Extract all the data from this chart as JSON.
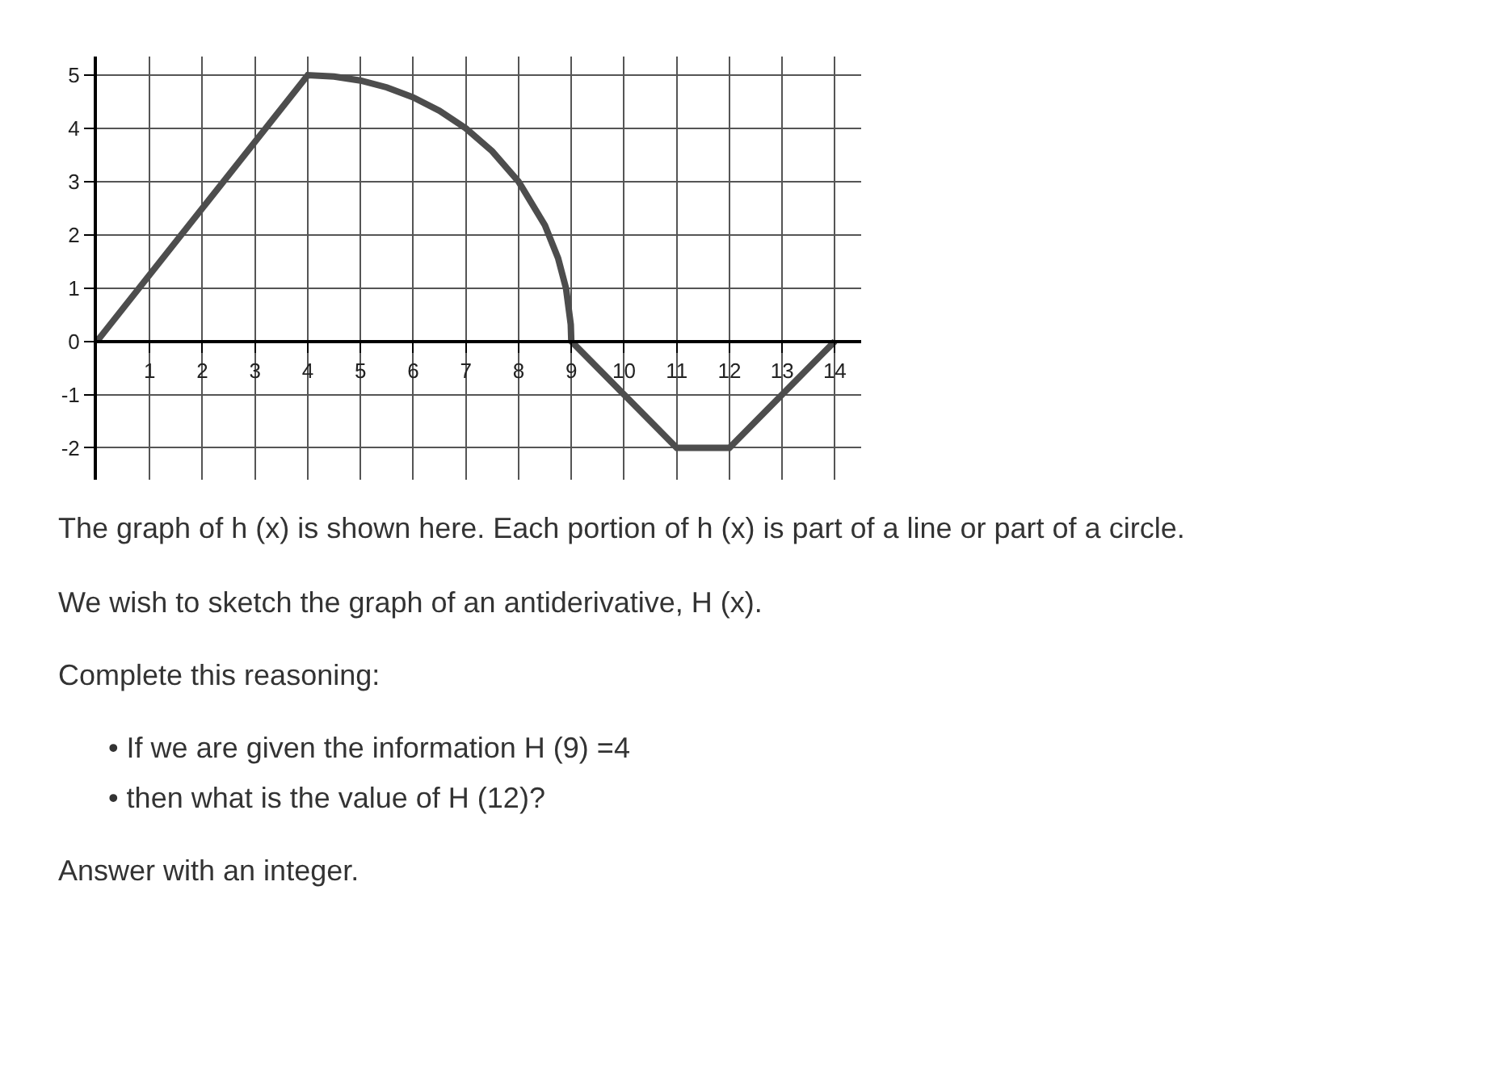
{
  "chart_data": {
    "type": "line",
    "x": [
      0,
      4,
      4.5,
      5,
      5.5,
      6,
      6.5,
      7,
      7.5,
      8,
      8.5,
      8.75,
      8.9,
      8.99,
      9,
      11,
      12,
      14
    ],
    "values": [
      0,
      5,
      4.975,
      4.899,
      4.77,
      4.583,
      4.33,
      4,
      3.571,
      3,
      2.179,
      1.561,
      0.995,
      0.316,
      0,
      -2,
      -2,
      0
    ],
    "color": "#4d4d4d",
    "xlim": [
      0,
      14.5
    ],
    "ylim": [
      -2.6,
      5.35
    ],
    "xticks": [
      1,
      2,
      3,
      4,
      5,
      6,
      7,
      8,
      9,
      10,
      11,
      12,
      13,
      14
    ],
    "yticks": [
      -2,
      -1,
      0,
      1,
      2,
      3,
      4,
      5
    ],
    "grid": true,
    "marker": "none",
    "line_style": "solid",
    "annotations": [
      "The graph of h (x) is shown here. Each portion of h (x) is part of a line or part of a circle.",
      "We wish to sketch the graph of an antiderivative, H (x).",
      "Complete this reasoning:",
      "• If we are given the information H (9) =4",
      "• then what is the value of H (12)?",
      "Answer with an integer."
    ]
  }
}
